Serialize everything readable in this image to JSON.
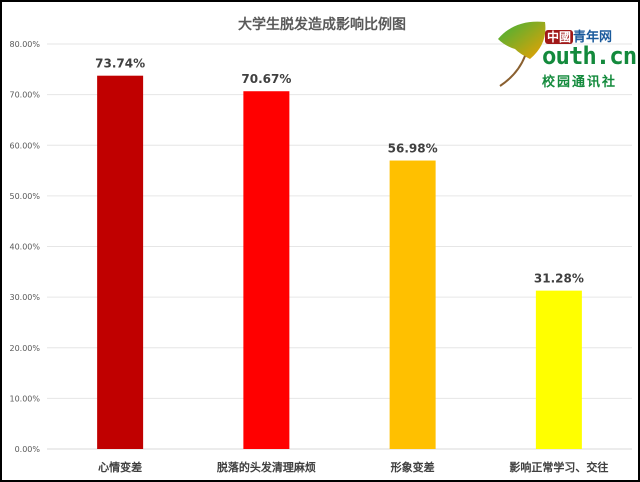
{
  "chart_data": {
    "type": "bar",
    "title": "大学生脱发造成影响比例图",
    "categories": [
      "心情变差",
      "脱落的头发清理麻烦",
      "形象变差",
      "影响正常学习、交往"
    ],
    "values": [
      73.74,
      70.67,
      56.98,
      31.28
    ],
    "data_labels": [
      "73.74%",
      "70.67%",
      "56.98%",
      "31.28%"
    ],
    "colors": [
      "#c00000",
      "#ff0000",
      "#ffc000",
      "#ffff00"
    ],
    "ylim": [
      0,
      80
    ],
    "yticks": [
      "0.00%",
      "10.00%",
      "20.00%",
      "30.00%",
      "40.00%",
      "50.00%",
      "60.00%",
      "70.00%",
      "80.00%"
    ],
    "grid": true,
    "legend": "none"
  },
  "logo": {
    "top": "中國",
    "top2": "青年网",
    "main": "outh.cn",
    "sub": "校园通讯社"
  }
}
